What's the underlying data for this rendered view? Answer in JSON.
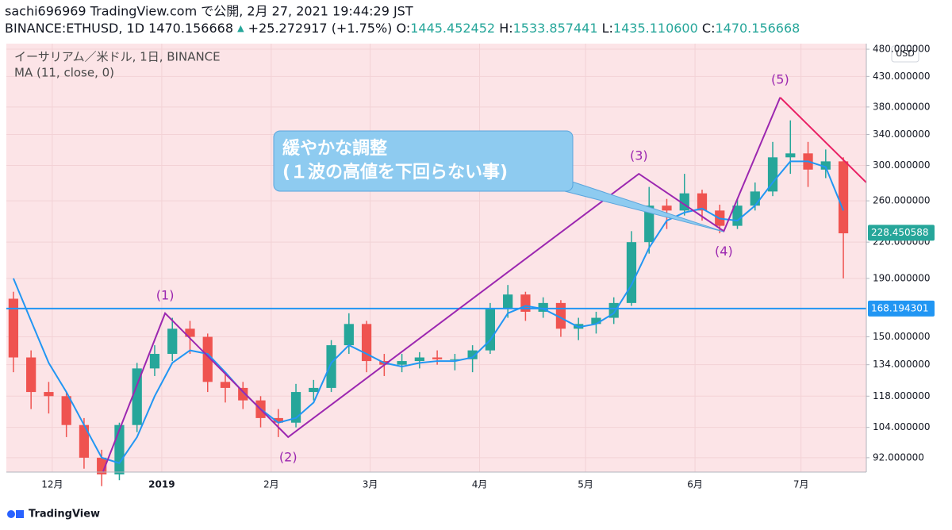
{
  "header": {
    "line1": "sachi696969 TradingView.com で公開, 2月 27, 2021 19:44:29 JST",
    "symbol": "BINANCE:ETHUSD, 1D",
    "last": "1470.156668",
    "arrow": "▲",
    "change": "+25.272917 (+1.75%)",
    "ohlc": [
      {
        "label": "O:",
        "value": "1445.452452"
      },
      {
        "label": "H:",
        "value": "1533.857441"
      },
      {
        "label": "L:",
        "value": "1435.110600"
      },
      {
        "label": "C:",
        "value": "1470.156668"
      }
    ]
  },
  "footer": {
    "brand": "TradingView"
  },
  "chart_data": {
    "type": "candlestick",
    "title": "イーサリアム／米ドル, 1日, BINANCE",
    "currency": "USD",
    "log_scale": true,
    "grid": true,
    "background": "#fce4e7",
    "up_color": "#26a69a",
    "down_color": "#ef5350",
    "x": [
      0,
      1,
      2,
      3,
      4,
      5,
      6,
      7,
      8,
      9,
      10,
      11,
      12,
      13,
      14,
      15,
      16,
      17,
      18,
      19,
      20,
      21,
      22,
      23,
      24,
      25,
      26,
      27,
      28,
      29,
      30,
      31,
      32,
      33,
      34,
      35,
      36,
      37,
      38,
      39,
      40,
      41,
      42,
      43,
      44,
      45,
      46,
      47
    ],
    "open": [
      175,
      138,
      120,
      118,
      105,
      92,
      86,
      105,
      132,
      140,
      155,
      150,
      125,
      122,
      116,
      108,
      106,
      120,
      122,
      145,
      158,
      136,
      134,
      136,
      138,
      137,
      137,
      142,
      168,
      178,
      166,
      172,
      155,
      158,
      162,
      172,
      220,
      255,
      250,
      268,
      250,
      235,
      255,
      270,
      310,
      315,
      295,
      305
    ],
    "high": [
      180,
      142,
      125,
      120,
      108,
      95,
      106,
      135,
      145,
      162,
      160,
      152,
      130,
      125,
      118,
      112,
      124,
      126,
      148,
      165,
      160,
      140,
      140,
      141,
      142,
      140,
      145,
      172,
      185,
      180,
      176,
      174,
      162,
      166,
      176,
      230,
      275,
      262,
      290,
      272,
      256,
      262,
      280,
      330,
      360,
      330,
      320,
      310
    ],
    "low": [
      130,
      112,
      110,
      100,
      88,
      82,
      84,
      102,
      128,
      136,
      140,
      120,
      115,
      112,
      104,
      100,
      104,
      116,
      120,
      140,
      130,
      128,
      130,
      132,
      134,
      131,
      130,
      140,
      162,
      160,
      162,
      150,
      148,
      152,
      158,
      170,
      210,
      232,
      245,
      240,
      228,
      232,
      250,
      265,
      290,
      275,
      285,
      190
    ],
    "close": [
      138,
      120,
      118,
      105,
      92,
      86,
      105,
      132,
      140,
      155,
      150,
      125,
      122,
      116,
      108,
      106,
      120,
      122,
      145,
      158,
      136,
      134,
      136,
      138,
      137,
      137,
      142,
      168,
      178,
      166,
      172,
      155,
      158,
      162,
      172,
      220,
      255,
      250,
      268,
      250,
      235,
      255,
      270,
      310,
      315,
      295,
      305,
      228
    ],
    "series": [
      {
        "name": "MA (11, close, 0)",
        "color": "#2196f3",
        "values": [
          190,
          160,
          135,
          120,
          105,
          92,
          90,
          100,
          118,
          135,
          142,
          140,
          130,
          120,
          112,
          106,
          108,
          115,
          135,
          145,
          140,
          135,
          133,
          135,
          136,
          136,
          138,
          148,
          165,
          170,
          168,
          162,
          156,
          158,
          165,
          185,
          215,
          240,
          248,
          252,
          242,
          240,
          255,
          280,
          305,
          305,
          298,
          250
        ]
      }
    ],
    "hlines": [
      {
        "value": 168.194301,
        "color": "#2196f3"
      }
    ],
    "last_price": 228.450588,
    "waves": {
      "color": "#9c27b0",
      "points": [
        {
          "x": 5.08,
          "value": 87
        },
        {
          "x": 8.59,
          "value": 165,
          "label": "(1)"
        },
        {
          "x": 15.56,
          "value": 100,
          "label": "(2)"
        },
        {
          "x": 35.42,
          "value": 290,
          "label": "(3)"
        },
        {
          "x": 40.23,
          "value": 230,
          "label": "(4)"
        },
        {
          "x": 43.42,
          "value": 395,
          "label": "(5)"
        }
      ]
    },
    "trend_line": {
      "color": "#e91e63",
      "x": [
        43.42,
        48.3
      ],
      "values": [
        395,
        280
      ]
    },
    "annotation": [
      "緩やかな調整",
      "(１波の高値を下回らない事)"
    ],
    "xlim": [
      -0.4,
      48.3
    ],
    "xticks": [
      {
        "value": 2.2,
        "label": "12月"
      },
      {
        "value": 8.4,
        "label": "2019"
      },
      {
        "value": 14.6,
        "label": "2月"
      },
      {
        "value": 20.2,
        "label": "3月"
      },
      {
        "value": 26.4,
        "label": "4月"
      },
      {
        "value": 32.4,
        "label": "5月"
      },
      {
        "value": 38.6,
        "label": "6月"
      },
      {
        "value": 44.6,
        "label": "7月"
      }
    ],
    "ylim": [
      86.8,
      491
    ],
    "yticks": [
      {
        "value": 92,
        "label": "92.000000"
      },
      {
        "value": 104,
        "label": "104.000000"
      },
      {
        "value": 118,
        "label": "118.000000"
      },
      {
        "value": 134,
        "label": "134.000000"
      },
      {
        "value": 150,
        "label": "150.000000"
      },
      {
        "value": 190,
        "label": "190.000000"
      },
      {
        "value": 220,
        "label": "220.000000"
      },
      {
        "value": 260,
        "label": "260.000000"
      },
      {
        "value": 300,
        "label": "300.000000"
      },
      {
        "value": 340,
        "label": "340.000000"
      },
      {
        "value": 380,
        "label": "380.000000"
      },
      {
        "value": 430,
        "label": "430.000000"
      },
      {
        "value": 480,
        "label": "480.000000"
      }
    ]
  }
}
